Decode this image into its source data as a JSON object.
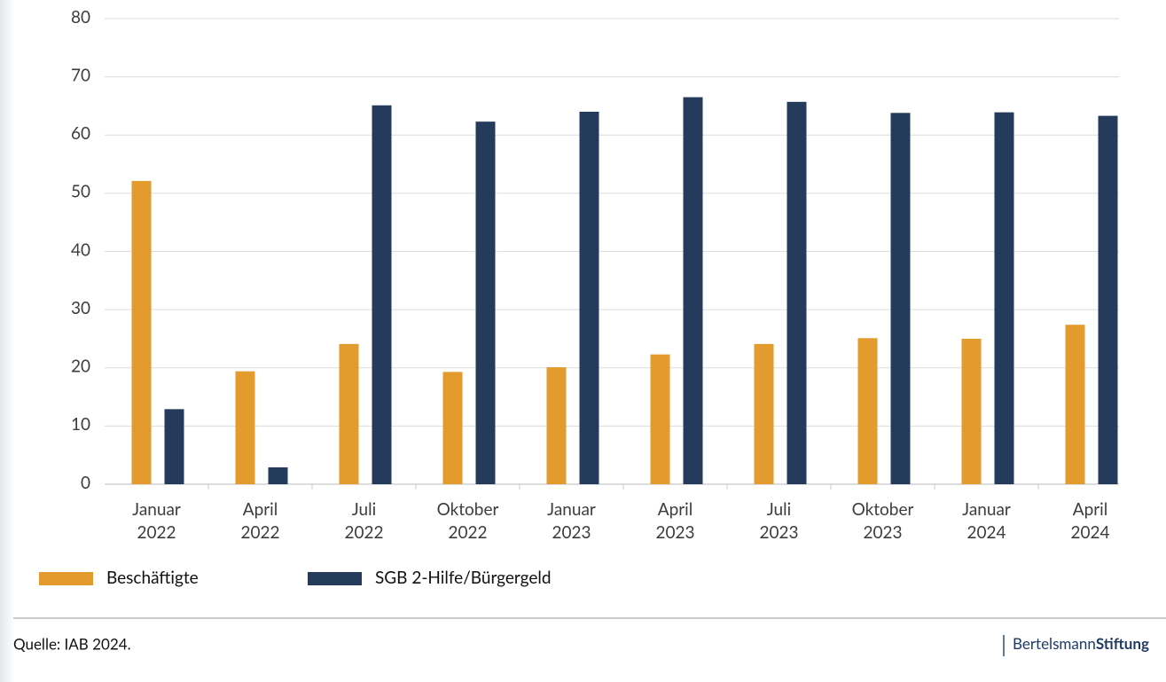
{
  "chart_data": {
    "type": "bar",
    "categories": [
      [
        "Januar",
        "2022"
      ],
      [
        "April",
        "2022"
      ],
      [
        "Juli",
        "2022"
      ],
      [
        "Oktober",
        "2022"
      ],
      [
        "Januar",
        "2023"
      ],
      [
        "April",
        "2023"
      ],
      [
        "Juli",
        "2023"
      ],
      [
        "Oktober",
        "2023"
      ],
      [
        "Januar",
        "2024"
      ],
      [
        "April",
        "2024"
      ]
    ],
    "series": [
      {
        "name": "Beschäftigte",
        "color": "#e29b2c",
        "values": [
          52.1,
          19.4,
          24.1,
          19.3,
          20.1,
          22.3,
          24.1,
          25.1,
          25.0,
          27.4
        ]
      },
      {
        "name": "SGB 2-Hilfe/Bürgergeld",
        "color": "#253b5b",
        "values": [
          12.9,
          2.9,
          65.1,
          62.3,
          64.0,
          66.5,
          65.7,
          63.8,
          63.9,
          63.3
        ]
      }
    ],
    "ylim": [
      0,
      80
    ],
    "yticks": [
      0,
      10,
      20,
      30,
      40,
      50,
      60,
      70,
      80
    ],
    "grid": true,
    "legend": "bottom-left",
    "source": "Quelle: IAB 2024.",
    "logo": {
      "regular": "Bertelsmann",
      "bold": "Stiftung"
    }
  }
}
